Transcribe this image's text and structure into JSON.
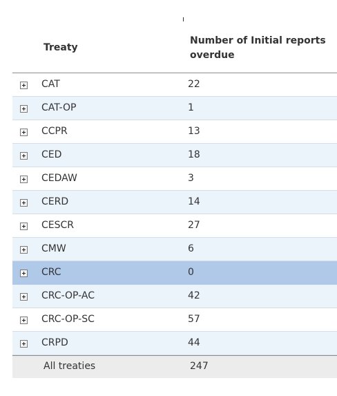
{
  "header": {
    "treaty_label": "Treaty",
    "count_label": "Number of Initial reports overdue"
  },
  "rows": [
    {
      "name": "CAT",
      "value": "22"
    },
    {
      "name": "CAT-OP",
      "value": "1"
    },
    {
      "name": "CCPR",
      "value": "13"
    },
    {
      "name": "CED",
      "value": "18"
    },
    {
      "name": "CEDAW",
      "value": "3"
    },
    {
      "name": "CERD",
      "value": "14"
    },
    {
      "name": "CESCR",
      "value": "27"
    },
    {
      "name": "CMW",
      "value": "6"
    },
    {
      "name": "CRC",
      "value": "0"
    },
    {
      "name": "CRC-OP-AC",
      "value": "42"
    },
    {
      "name": "CRC-OP-SC",
      "value": "57"
    },
    {
      "name": "CRPD",
      "value": "44"
    }
  ],
  "selected_row": "CRC",
  "footer": {
    "label": "All treaties",
    "value": "247"
  },
  "colors": {
    "alt_row": "#ebf3fb",
    "selected_row": "#b0c9e9",
    "footer_bg": "#ececec"
  }
}
